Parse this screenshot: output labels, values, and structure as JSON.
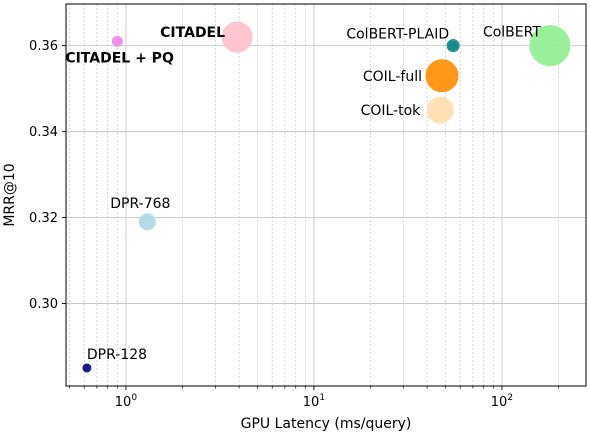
{
  "chart_data": {
    "type": "scatter",
    "xlabel": "GPU Latency (ms/query)",
    "ylabel": "MRR@10",
    "xscale": "log",
    "xlim": [
      0.48,
      280
    ],
    "ylim": [
      0.2808,
      0.3697
    ],
    "grid": "on (major and minor)",
    "x_ticks": [
      {
        "base": "10",
        "exp": "0"
      },
      {
        "base": "10",
        "exp": "1"
      },
      {
        "base": "10",
        "exp": "2"
      }
    ],
    "y_ticks": [
      "0.30",
      "0.32",
      "0.34",
      "0.36"
    ],
    "points": [
      {
        "label": "CITADEL",
        "x": 3.9,
        "y": 0.362,
        "size": 15,
        "color": "#ffc0cb",
        "bold": true
      },
      {
        "label": "CITADEL + PQ",
        "x": 0.9,
        "y": 0.361,
        "size": 5,
        "color": "#ee82ee",
        "bold": true
      },
      {
        "label": "ColBERT-PLAID",
        "x": 55,
        "y": 0.36,
        "size": 6,
        "color": "#008080",
        "bold": false
      },
      {
        "label": "ColBERT",
        "x": 180,
        "y": 0.36,
        "size": 20,
        "color": "#90ee90",
        "bold": false
      },
      {
        "label": "COIL-full",
        "x": 48,
        "y": 0.353,
        "size": 16,
        "color": "#ff8c00",
        "bold": false
      },
      {
        "label": "COIL-tok",
        "x": 47,
        "y": 0.345,
        "size": 13,
        "color": "#ffdead",
        "bold": false
      },
      {
        "label": "DPR-768",
        "x": 1.3,
        "y": 0.319,
        "size": 8,
        "color": "#add8e6",
        "bold": false
      },
      {
        "label": "DPR-128",
        "x": 0.62,
        "y": 0.285,
        "size": 4,
        "color": "#000080",
        "bold": false
      }
    ]
  }
}
